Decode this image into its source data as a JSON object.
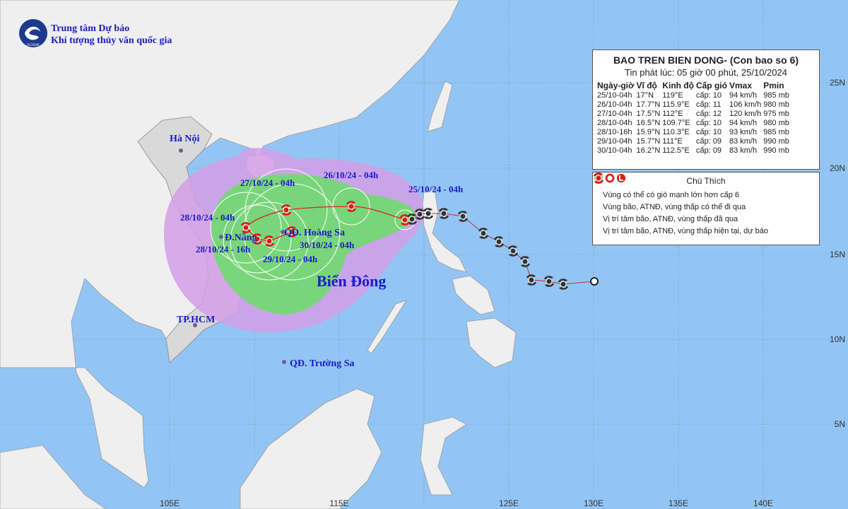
{
  "header": {
    "org_line1": "Trung tâm Dự báo",
    "org_line2": "Khí tượng thủy văn quốc gia",
    "logo": "NCHMF"
  },
  "info_box": {
    "title": "BAO TREN BIEN DONG- (Con bao so 6)",
    "subtitle": "Tin phát lúc: 05 giờ 00 phút, 25/10/2024",
    "columns": [
      "Ngày-giờ",
      "Vĩ độ",
      "Kinh độ",
      "Cấp gió",
      "Vmax",
      "Pmin"
    ],
    "rows": [
      [
        "25/10-04h",
        "17°N",
        "119°E",
        "cấp: 10",
        "94 km/h",
        "985 mb"
      ],
      [
        "26/10-04h",
        "17.7°N",
        "115.9°E",
        "cấp: 11",
        "106 km/h",
        "980 mb"
      ],
      [
        "27/10-04h",
        "17.5°N",
        "112°E",
        "cấp: 12",
        "120 km/h",
        "975 mb"
      ],
      [
        "28/10-04h",
        "16.5°N",
        "109.7°E",
        "cấp: 10",
        "94 km/h",
        "980 mb"
      ],
      [
        "28/10-16h",
        "15.9°N",
        "110.3°E",
        "cấp: 10",
        "93 km/h",
        "985 mb"
      ],
      [
        "29/10-04h",
        "15.7°N",
        "111°E",
        "cấp: 09",
        "83 km/h",
        "990 mb"
      ],
      [
        "30/10-04h",
        "16.2°N",
        "112.5°E",
        "cấp: 09",
        "83 km/h",
        "990 mb"
      ]
    ]
  },
  "legend": {
    "title": "Chú Thích",
    "items": [
      "Vùng có thể có gió mạnh lớn hơn cấp 6",
      "Vùng bão, ATNĐ, vùng thấp có thể đi qua",
      "Vị trí tâm bão, ATNĐ, vùng thấp đã qua",
      "Vị trí tâm bão, ATNĐ, vùng thấp hiện tại, dự báo"
    ]
  },
  "track_labels": [
    "25/10/24 - 04h",
    "26/10/24 - 04h",
    "27/10/24 - 04h",
    "28/10/24 - 04h",
    "28/10/24 - 16h",
    "29/10/24 - 04h",
    "30/10/24 - 04h"
  ],
  "places": [
    "Hà Nội",
    "Đ.Nẵng",
    "QĐ. Hoàng Sa",
    "TP.HCM",
    "QĐ. Trường Sa",
    "Biển Đông"
  ],
  "lat_labels": [
    "25N",
    "20N",
    "15N",
    "10N",
    "5N"
  ],
  "lon_labels": [
    "105E",
    "115E",
    "125E",
    "130E",
    "135E",
    "140E"
  ]
}
